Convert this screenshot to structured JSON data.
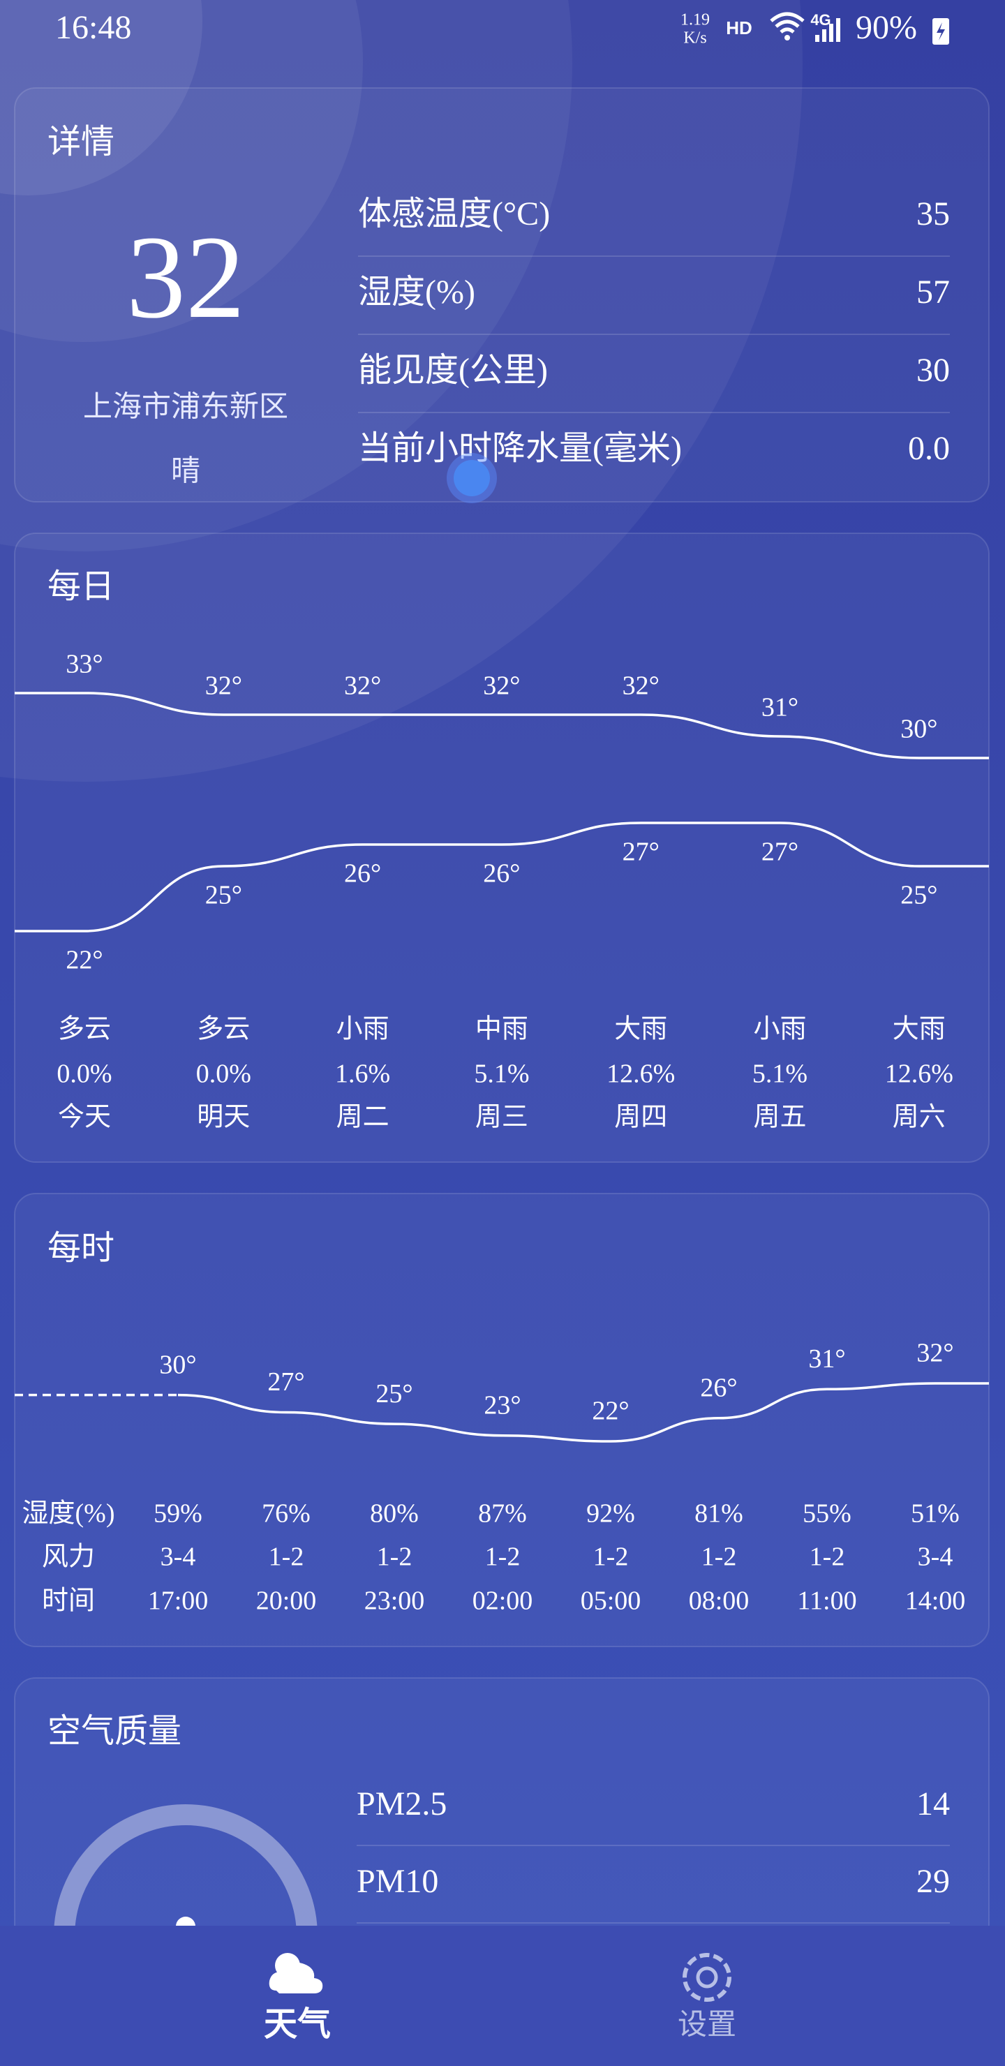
{
  "status_bar": {
    "time": "16:48",
    "net_speed": "1.19",
    "net_speed_unit": "K/s",
    "hd": "HD",
    "network": "4G",
    "battery": "90%"
  },
  "details": {
    "title": "详情",
    "temperature": "32",
    "location": "上海市浦东新区",
    "weather": "晴",
    "rows": [
      {
        "label": "体感温度(°C)",
        "value": "35"
      },
      {
        "label": "湿度(%)",
        "value": "57"
      },
      {
        "label": "能见度(公里)",
        "value": "30"
      },
      {
        "label": "当前小时降水量(毫米)",
        "value": "0.0"
      }
    ]
  },
  "daily": {
    "title": "每日",
    "highs": [
      33,
      32,
      32,
      32,
      32,
      31,
      30
    ],
    "high_labels": [
      "33°",
      "32°",
      "32°",
      "32°",
      "32°",
      "31°",
      "30°"
    ],
    "lows": [
      22,
      25,
      26,
      26,
      27,
      27,
      25
    ],
    "low_labels": [
      "22°",
      "25°",
      "26°",
      "26°",
      "27°",
      "27°",
      "25°"
    ],
    "conditions": [
      "多云",
      "多云",
      "小雨",
      "中雨",
      "大雨",
      "小雨",
      "大雨"
    ],
    "precipitation": [
      "0.0%",
      "0.0%",
      "1.6%",
      "5.1%",
      "12.6%",
      "5.1%",
      "12.6%"
    ],
    "days": [
      "今天",
      "明天",
      "周二",
      "周三",
      "周四",
      "周五",
      "周六"
    ]
  },
  "hourly": {
    "title": "每时",
    "temps": [
      30,
      27,
      25,
      23,
      22,
      26,
      31,
      32
    ],
    "temp_labels": [
      "30°",
      "27°",
      "25°",
      "23°",
      "22°",
      "26°",
      "31°",
      "32°"
    ],
    "row_labels": [
      "湿度(%)",
      "风力",
      "时间"
    ],
    "humidity": [
      "59%",
      "76%",
      "80%",
      "87%",
      "92%",
      "81%",
      "55%",
      "51%"
    ],
    "wind": [
      "3-4",
      "1-2",
      "1-2",
      "1-2",
      "1-2",
      "1-2",
      "1-2",
      "3-4"
    ],
    "times": [
      "17:00",
      "20:00",
      "23:00",
      "02:00",
      "05:00",
      "08:00",
      "11:00",
      "14:00"
    ]
  },
  "air_quality": {
    "title": "空气质量",
    "rows": [
      {
        "label": "PM2.5",
        "value": "14"
      },
      {
        "label": "PM10",
        "value": "29"
      }
    ]
  },
  "nav": [
    {
      "label": "天气"
    },
    {
      "label": "设置"
    }
  ]
}
